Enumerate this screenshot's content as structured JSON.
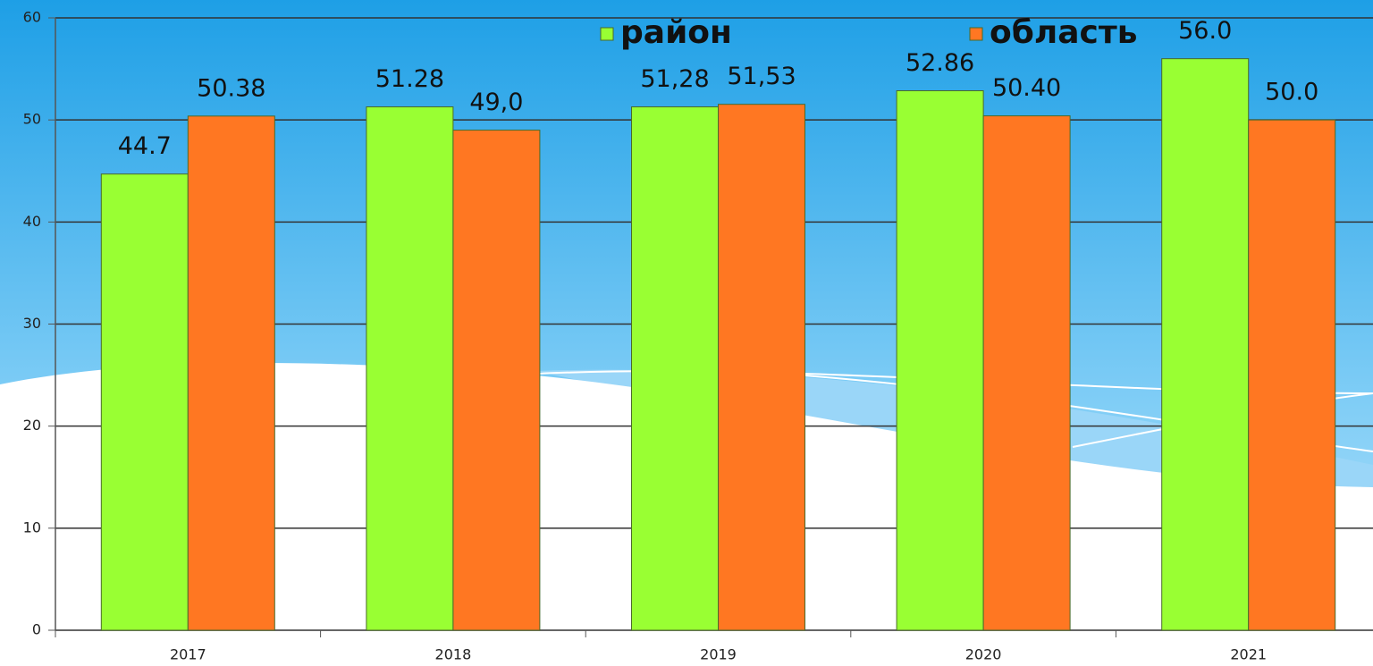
{
  "chart_data": {
    "type": "bar",
    "categories": [
      "2017",
      "2018",
      "2019",
      "2020",
      "2021"
    ],
    "series": [
      {
        "name": "район",
        "color": "#99ff33",
        "values": [
          44.7,
          51.28,
          51.28,
          52.86,
          56.0
        ],
        "value_labels": [
          "44.7",
          "51.28",
          "51,28",
          "52.86",
          "56.0"
        ]
      },
      {
        "name": "область",
        "color": "#ff7722",
        "values": [
          50.38,
          49.0,
          51.53,
          50.4,
          50.0
        ],
        "value_labels": [
          "50.38",
          "49,0",
          "51,53",
          "50.40",
          "50.0"
        ]
      }
    ],
    "ylim": [
      0,
      60
    ],
    "yticks": [
      0,
      10,
      20,
      30,
      40,
      50,
      60
    ],
    "grid": true,
    "legend": "top"
  }
}
